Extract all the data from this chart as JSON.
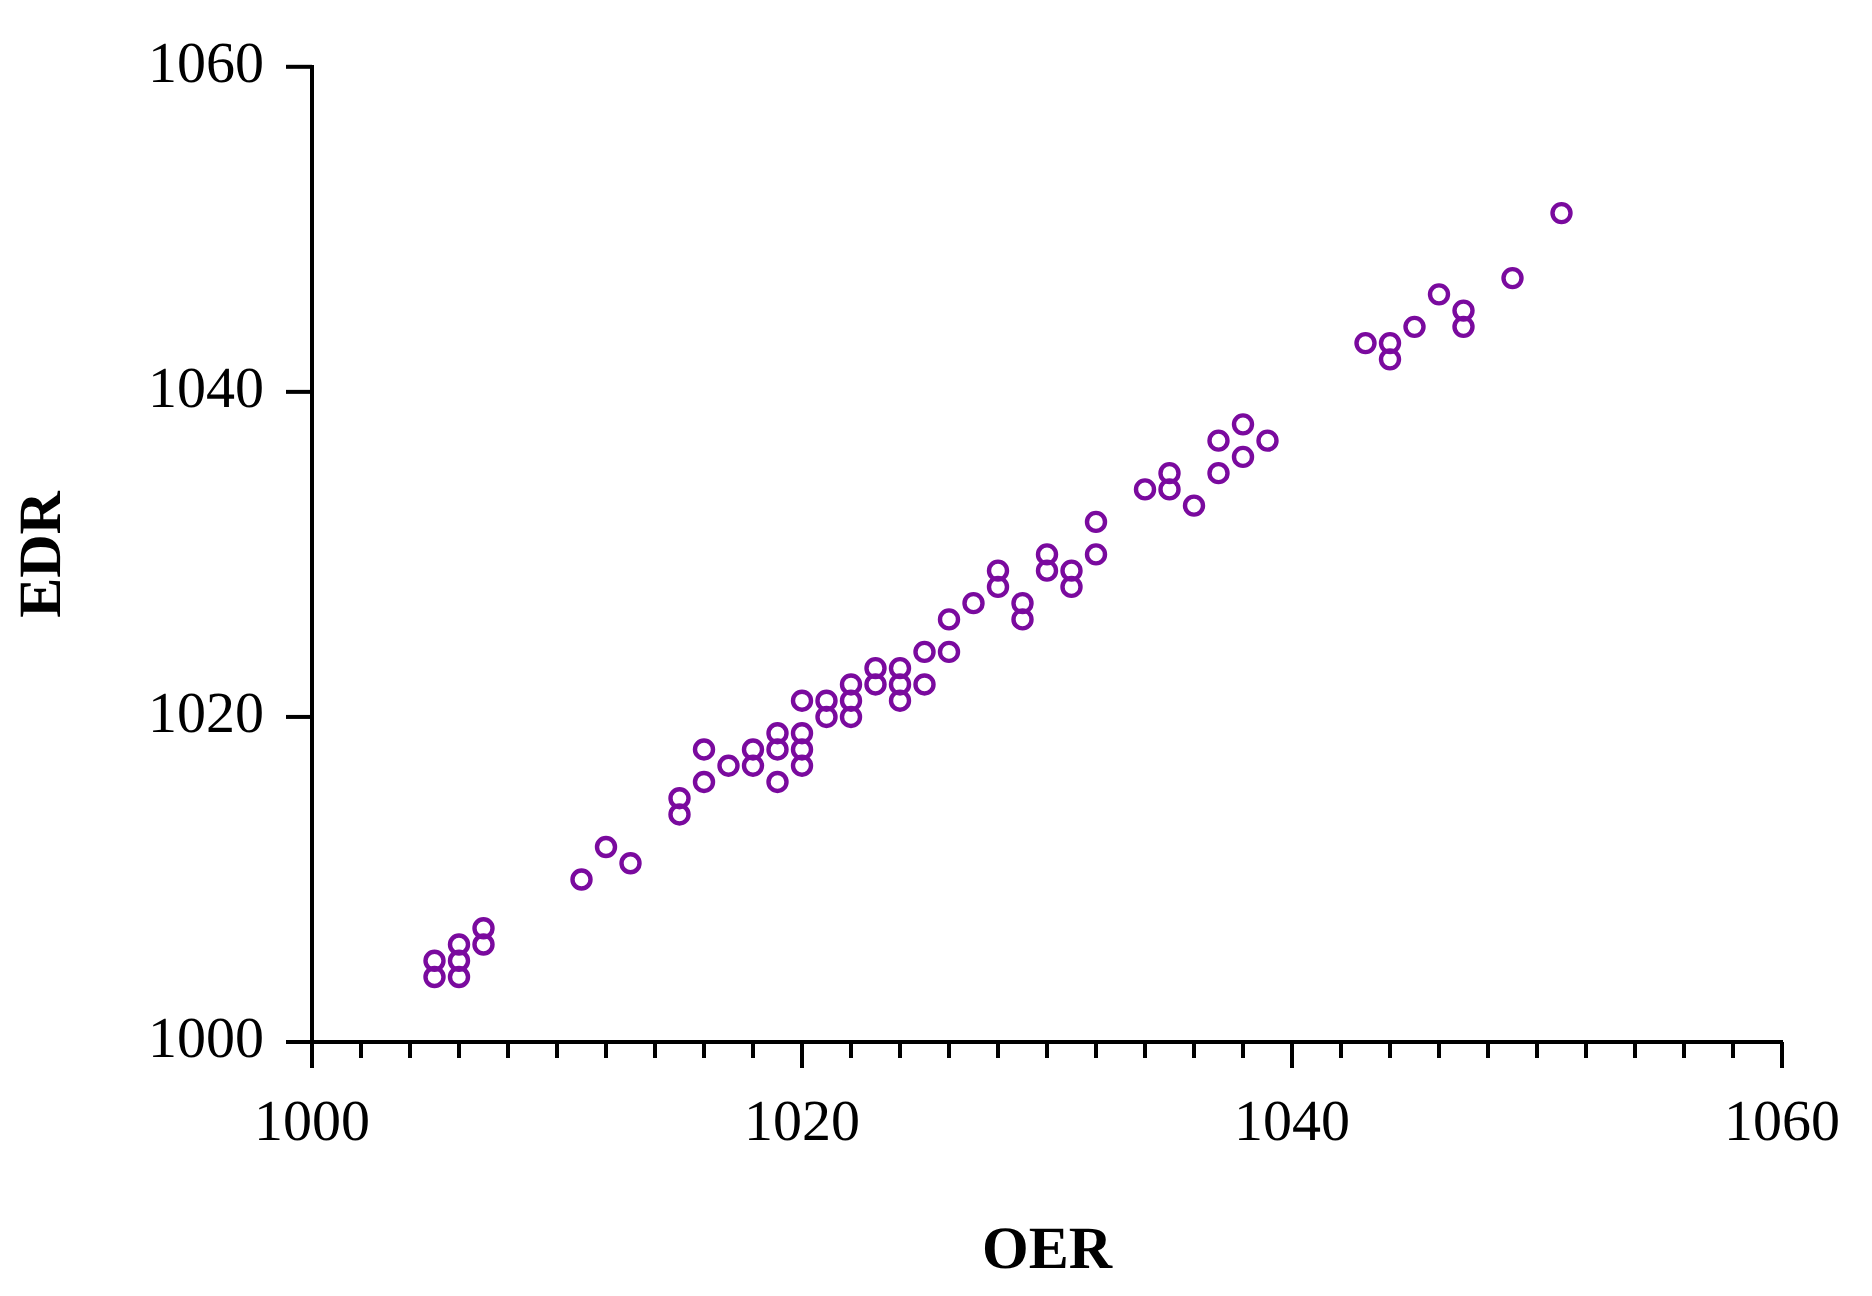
{
  "chart_data": {
    "type": "scatter",
    "xlabel": "OER",
    "ylabel": "EDR",
    "marker": "circle",
    "xlim": [
      1000,
      1060
    ],
    "ylim": [
      1000,
      1060
    ],
    "xticks": [
      1000,
      {
        "value": 1002,
        "label": null
      },
      {
        "value": 1004,
        "label": null
      },
      {
        "value": 1006,
        "label": null
      },
      {
        "value": 1008,
        "label": null
      },
      {
        "value": 1010,
        "label": null
      },
      {
        "value": 1012,
        "label": null
      },
      {
        "value": 1014,
        "label": null
      },
      {
        "value": 1016,
        "label": null
      },
      {
        "value": 1018,
        "label": null
      },
      1020,
      {
        "value": 1022,
        "label": null
      },
      {
        "value": 1024,
        "label": null
      },
      {
        "value": 1026,
        "label": null
      },
      {
        "value": 1028,
        "label": null
      },
      {
        "value": 1030,
        "label": null
      },
      {
        "value": 1032,
        "label": null
      },
      {
        "value": 1034,
        "label": null
      },
      {
        "value": 1036,
        "label": null
      },
      {
        "value": 1038,
        "label": null
      },
      1040,
      {
        "value": 1042,
        "label": null
      },
      {
        "value": 1044,
        "label": null
      },
      {
        "value": 1046,
        "label": null
      },
      {
        "value": 1048,
        "label": null
      },
      {
        "value": 1050,
        "label": null
      },
      {
        "value": 1052,
        "label": null
      },
      {
        "value": 1054,
        "label": null
      },
      {
        "value": 1056,
        "label": null
      },
      {
        "value": 1058,
        "label": null
      },
      1060
    ],
    "yticks": [
      1000,
      1020,
      1040,
      1060
    ],
    "series": [
      {
        "color": "#7a0a9e",
        "x": [
          1005,
          1005,
          1006,
          1006,
          1006,
          1007,
          1007,
          1011,
          1012,
          1013,
          1015,
          1015,
          1016,
          1016,
          1017,
          1018,
          1018,
          1019,
          1019,
          1019,
          1020,
          1020,
          1020,
          1020,
          1021,
          1021,
          1022,
          1022,
          1022,
          1023,
          1023,
          1024,
          1024,
          1024,
          1025,
          1025,
          1026,
          1026,
          1027,
          1028,
          1028,
          1029,
          1029,
          1030,
          1030,
          1031,
          1031,
          1032,
          1032,
          1034,
          1035,
          1035,
          1036,
          1037,
          1037,
          1038,
          1038,
          1039,
          1043,
          1044,
          1044,
          1045,
          1046,
          1047,
          1047,
          1049,
          1051
        ],
        "values": [
          1005,
          1004,
          1006,
          1005,
          1004,
          1007,
          1006,
          1010,
          1012,
          1011,
          1015,
          1014,
          1018,
          1016,
          1017,
          1018,
          1017,
          1019,
          1018,
          1016,
          1021,
          1019,
          1018,
          1017,
          1021,
          1020,
          1022,
          1021,
          1020,
          1023,
          1022,
          1023,
          1022,
          1021,
          1024,
          1022,
          1026,
          1024,
          1027,
          1029,
          1028,
          1027,
          1026,
          1030,
          1029,
          1029,
          1028,
          1032,
          1030,
          1034,
          1035,
          1034,
          1033,
          1037,
          1035,
          1038,
          1036,
          1037,
          1043,
          1043,
          1042,
          1044,
          1046,
          1045,
          1044,
          1047,
          1051
        ]
      }
    ]
  }
}
